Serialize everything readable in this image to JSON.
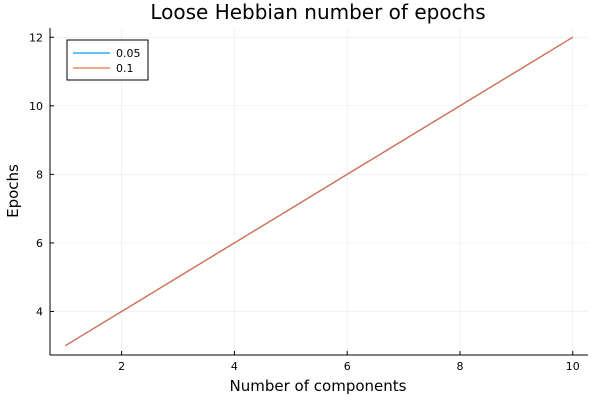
{
  "chart_data": {
    "type": "line",
    "title": "Loose Hebbian number of epochs",
    "xlabel": "Number of components",
    "ylabel": "Epochs",
    "x": [
      1,
      2,
      3,
      4,
      5,
      6,
      7,
      8,
      9,
      10
    ],
    "series": [
      {
        "name": "0.05",
        "color": "#009af9",
        "values": [
          3,
          4,
          5,
          6,
          7,
          8,
          9,
          10,
          11,
          12
        ]
      },
      {
        "name": "0.1",
        "color": "#e26f46",
        "values": [
          3,
          4,
          5,
          6,
          7,
          8,
          9,
          10,
          11,
          12
        ]
      }
    ],
    "xlim": [
      0.73,
      10.27
    ],
    "ylim": [
      2.73,
      12.27
    ],
    "xticks": [
      2,
      4,
      6,
      8,
      10
    ],
    "yticks": [
      4,
      6,
      8,
      10,
      12
    ],
    "grid": true,
    "legend_position": "top-left"
  }
}
